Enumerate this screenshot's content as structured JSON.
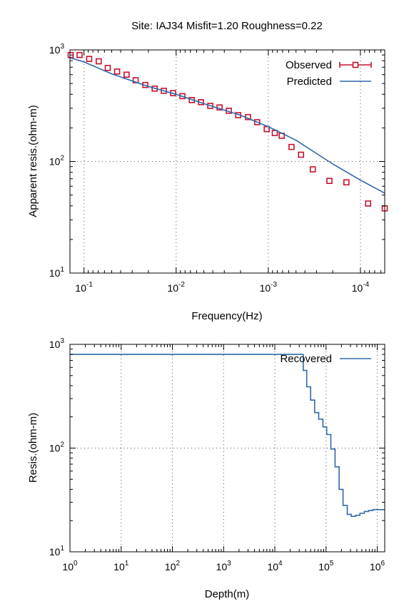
{
  "title": "Site: IAJ34  Misfit=1.20  Roughness=0.22",
  "colors": {
    "observed": "#c8102e",
    "predicted": "#2f68a8",
    "grid": "#555555",
    "axis": "#000000"
  },
  "chart_data": [
    {
      "type": "scatter",
      "xlabel": "Frequency(Hz)",
      "ylabel": "Apparent resis.(ohm-m)",
      "xscale": "log",
      "yscale": "log",
      "x_reversed": true,
      "xlim": [
        0.142,
        5.45e-05
      ],
      "ylim": [
        10,
        1000
      ],
      "grid": true,
      "legend_placement": "top-right",
      "x_ticks": [
        {
          "value": 0.1,
          "base": "10",
          "exp": "-1"
        },
        {
          "value": 0.01,
          "base": "10",
          "exp": "-2"
        },
        {
          "value": 0.001,
          "base": "10",
          "exp": "-3"
        },
        {
          "value": 0.0001,
          "base": "10",
          "exp": "-4"
        }
      ],
      "y_ticks": [
        {
          "value": 10,
          "base": "10",
          "exp": "1"
        },
        {
          "value": 100,
          "base": "10",
          "exp": "2"
        },
        {
          "value": 1000,
          "base": "10",
          "exp": "3"
        }
      ],
      "series": [
        {
          "name": "Observed",
          "style": "markers",
          "x": [
            0.1395,
            0.1116,
            0.0878,
            0.0692,
            0.0552,
            0.0437,
            0.0345,
            0.0275,
            0.0216,
            0.0171,
            0.0136,
            0.01077,
            0.00855,
            0.00676,
            0.00537,
            0.00426,
            0.00338,
            0.00268,
            0.00212,
            0.00166,
            0.00132,
            0.00104,
            0.00085,
            0.000715,
            0.00056,
            0.000441,
            0.000329,
            0.000217,
            0.000142,
            8.26e-05,
            5.45e-05
          ],
          "y": [
            900,
            900,
            830,
            790,
            690,
            640,
            600,
            535,
            485,
            450,
            430,
            410,
            385,
            355,
            340,
            315,
            305,
            285,
            260,
            250,
            225,
            195,
            180,
            170,
            135,
            115,
            85,
            67,
            65,
            42,
            38
          ]
        },
        {
          "name": "Predicted",
          "style": "line",
          "x": [
            0.142,
            0.1,
            0.05,
            0.02,
            0.01,
            0.005,
            0.002,
            0.001,
            0.0005,
            0.0002,
            0.0001,
            5.45e-05
          ],
          "y": [
            850,
            780,
            610,
            470,
            400,
            330,
            260,
            205,
            155,
            95,
            68,
            52
          ]
        }
      ]
    },
    {
      "type": "line",
      "xlabel": "Depth(m)",
      "ylabel": "Resis.(ohm-m)",
      "xscale": "log",
      "yscale": "log",
      "xlim": [
        1,
        1400000
      ],
      "ylim": [
        10,
        1000
      ],
      "grid": true,
      "legend_placement": "top-right",
      "x_ticks": [
        {
          "value": 1,
          "base": "10",
          "exp": "0"
        },
        {
          "value": 10,
          "base": "10",
          "exp": "1"
        },
        {
          "value": 100,
          "base": "10",
          "exp": "2"
        },
        {
          "value": 1000,
          "base": "10",
          "exp": "3"
        },
        {
          "value": 10000,
          "base": "10",
          "exp": "4"
        },
        {
          "value": 100000,
          "base": "10",
          "exp": "5"
        },
        {
          "value": 1000000,
          "base": "10",
          "exp": "6"
        }
      ],
      "y_ticks": [
        {
          "value": 10,
          "base": "10",
          "exp": "1"
        },
        {
          "value": 100,
          "base": "10",
          "exp": "2"
        },
        {
          "value": 1000,
          "base": "10",
          "exp": "3"
        }
      ],
      "series": [
        {
          "name": "Recovered",
          "style": "step",
          "x": [
            1,
            30000,
            36000,
            42000,
            50000,
            60000,
            72000,
            87000,
            103000,
            124000,
            150000,
            180000,
            215000,
            260000,
            310000,
            380000,
            460000,
            560000,
            680000,
            820000,
            1000000,
            1400000
          ],
          "y": [
            800,
            800,
            560,
            390,
            290,
            220,
            190,
            160,
            135,
            98,
            66,
            40,
            28,
            23,
            22,
            22.5,
            23.5,
            24.5,
            25,
            25.5,
            25.5,
            25.5
          ]
        }
      ]
    }
  ]
}
